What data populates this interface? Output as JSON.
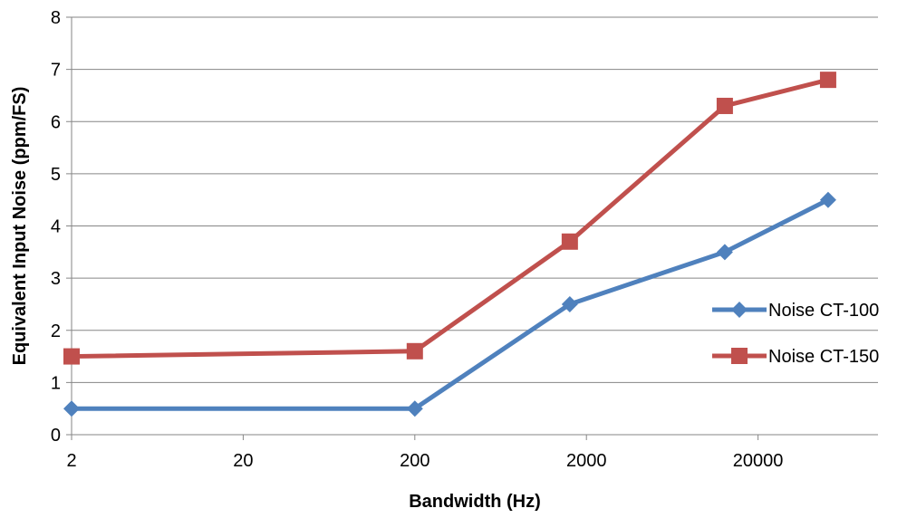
{
  "chart_data": {
    "type": "line",
    "title": "",
    "xlabel": "Bandwidth (Hz)",
    "ylabel": "Equivalent Input Noise (ppm/FS)",
    "xscale": "log",
    "xlim": [
      2,
      100000
    ],
    "ylim": [
      0,
      8
    ],
    "x_ticks": [
      2,
      20,
      200,
      2000,
      20000
    ],
    "x_tick_labels": [
      "2",
      "20",
      "200",
      "2000",
      "20000"
    ],
    "y_ticks": [
      0,
      1,
      2,
      3,
      4,
      5,
      6,
      7,
      8
    ],
    "y_tick_labels": [
      "0",
      "1",
      "2",
      "3",
      "4",
      "5",
      "6",
      "7",
      "8"
    ],
    "grid": "horizontal",
    "legend_position": "right",
    "series": [
      {
        "name": "Noise CT-100",
        "color": "#4F81BD",
        "marker": "diamond",
        "x": [
          2,
          200,
          1600,
          12800,
          51200
        ],
        "y": [
          0.5,
          0.5,
          2.5,
          3.5,
          4.5
        ]
      },
      {
        "name": "Noise CT-150",
        "color": "#C0504D",
        "marker": "square",
        "x": [
          2,
          200,
          1600,
          12800,
          51200
        ],
        "y": [
          1.5,
          1.6,
          3.7,
          6.3,
          6.8
        ]
      }
    ]
  }
}
